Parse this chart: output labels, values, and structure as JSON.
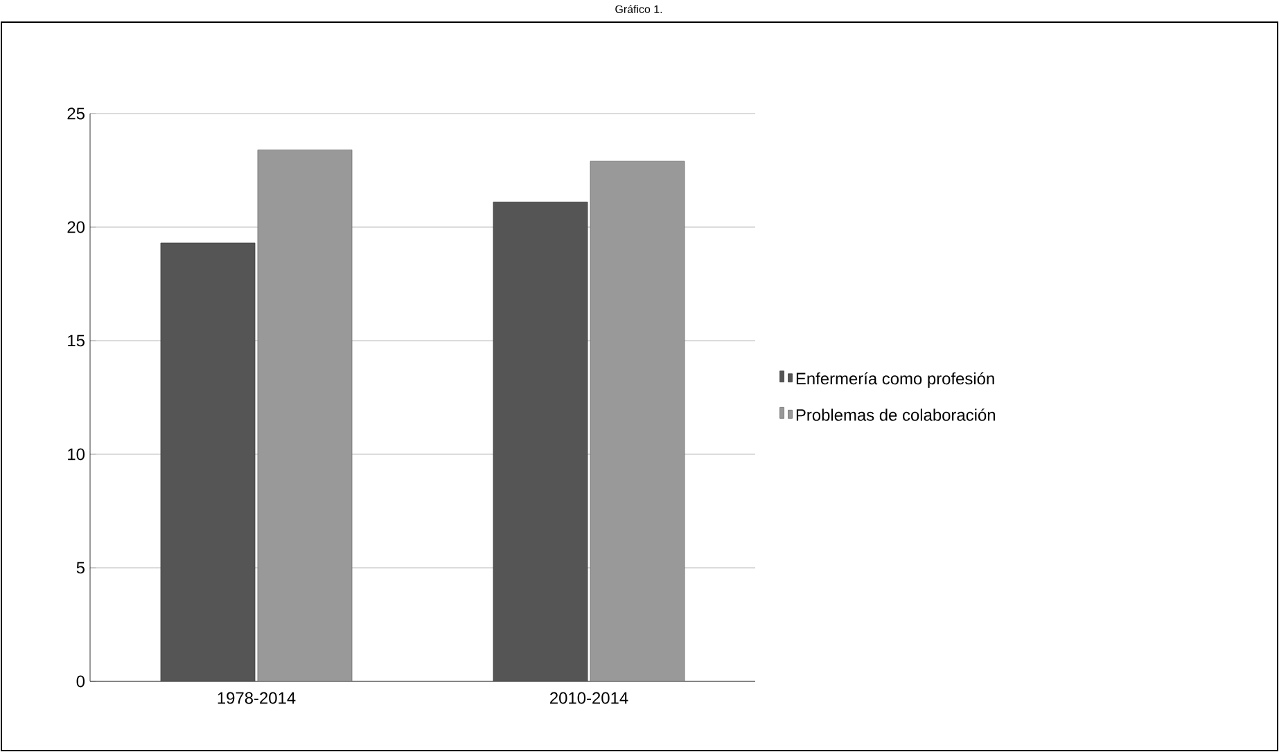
{
  "chart_data": {
    "type": "bar",
    "title": "Gráfico 1.",
    "categories": [
      "1978-2014",
      "2010-2014"
    ],
    "series": [
      {
        "name": "Enfermería como profesión",
        "color": "#555555",
        "values": [
          19.3,
          21.1
        ]
      },
      {
        "name": "Problemas de colaboración",
        "color": "#999999",
        "values": [
          23.4,
          22.9
        ]
      }
    ],
    "ylim": [
      0,
      25
    ],
    "yticks": [
      0,
      5,
      10,
      15,
      20,
      25
    ],
    "grid": "y",
    "legend": "right"
  }
}
